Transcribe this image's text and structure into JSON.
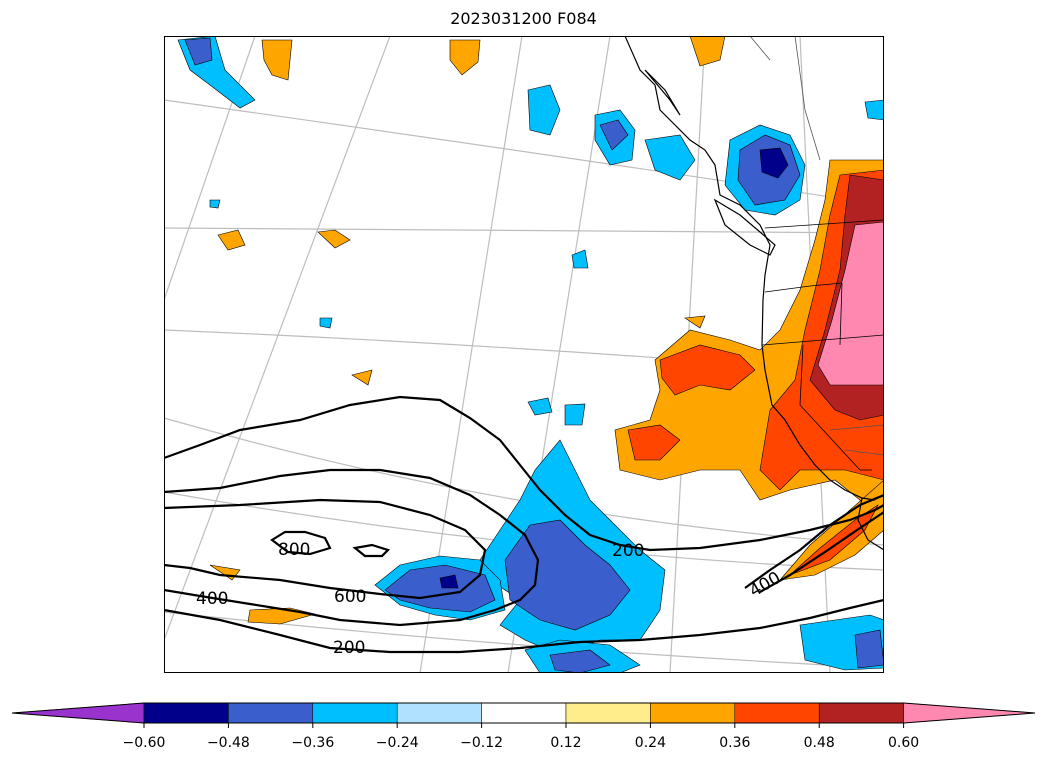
{
  "map": {
    "title": "2023031200 F084",
    "contour_labels": [
      "800",
      "600",
      "400",
      "200",
      "200",
      "400"
    ],
    "fill_colors": {
      "neg060": "#9a32cd",
      "neg048": "#00008b",
      "neg036": "#3a5fcd",
      "neg024": "#00bfff",
      "neg012": "#b0e2ff",
      "neutral": "#ffffff",
      "pos012": "#ffec8b",
      "pos024": "#ffa500",
      "pos036": "#ff4500",
      "pos048": "#b22222",
      "pos060": "#ff88b0"
    }
  },
  "colorbar": {
    "ticks": [
      "−0.60",
      "−0.48",
      "−0.36",
      "−0.24",
      "−0.12",
      "0.12",
      "0.24",
      "0.36",
      "0.48",
      "0.60"
    ]
  }
}
